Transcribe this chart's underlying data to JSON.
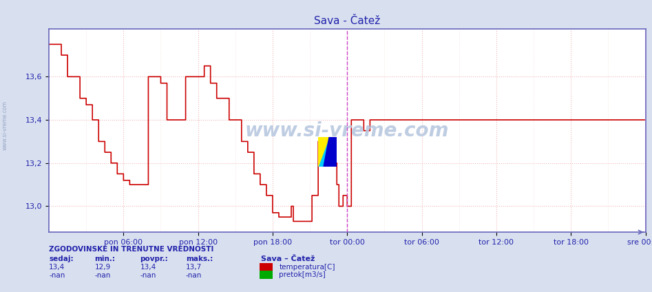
{
  "title": "Sava - Čatež",
  "title_color": "#2222aa",
  "bg_color": "#d8e0f0",
  "plot_bg_color": "#ffffff",
  "grid_color": "#f0b8b8",
  "grid_dash_color": "#c8c8d8",
  "line_color": "#cc0000",
  "line_width": 1.2,
  "ylim_min": 12.88,
  "ylim_max": 13.82,
  "yticks": [
    13.0,
    13.2,
    13.4,
    13.6
  ],
  "xtick_labels": [
    "pon 06:00",
    "pon 12:00",
    "pon 18:00",
    "tor 00:00",
    "tor 06:00",
    "tor 12:00",
    "tor 18:00",
    "sre 00:00"
  ],
  "vline_x": 288,
  "vline_x2": 576,
  "vline_color": "#cc44cc",
  "axis_color": "#6666bb",
  "tick_color": "#2222aa",
  "font_color": "#2222aa",
  "watermark_text": "www.si-vreme.com",
  "sidebar_text": "www.si-vreme.com",
  "info_title": "ZGODOVINSKE IN TRENUTNE VREDNOSTI",
  "info_station": "Sava – Čatež",
  "info_headers": [
    "sedaj:",
    "min.:",
    "povpr.:",
    "maks.:"
  ],
  "info_temp_values": [
    "13,4",
    "12,9",
    "13,4",
    "13,7"
  ],
  "info_flow_values": [
    "-nan",
    "-nan",
    "-nan",
    "-nan"
  ],
  "legend_temp_label": "temperatura[C]",
  "legend_flow_label": "pretok[m3/s]",
  "legend_temp_color": "#cc0000",
  "legend_flow_color": "#00aa00",
  "n_points": 576,
  "data_y": [
    13.75,
    13.75,
    13.75,
    13.75,
    13.75,
    13.75,
    13.75,
    13.75,
    13.75,
    13.75,
    13.75,
    13.75,
    13.7,
    13.7,
    13.7,
    13.7,
    13.7,
    13.7,
    13.6,
    13.6,
    13.6,
    13.6,
    13.6,
    13.6,
    13.6,
    13.6,
    13.6,
    13.6,
    13.6,
    13.6,
    13.5,
    13.5,
    13.5,
    13.5,
    13.5,
    13.5,
    13.47,
    13.47,
    13.47,
    13.47,
    13.47,
    13.47,
    13.4,
    13.4,
    13.4,
    13.4,
    13.4,
    13.4,
    13.3,
    13.3,
    13.3,
    13.3,
    13.3,
    13.3,
    13.25,
    13.25,
    13.25,
    13.25,
    13.25,
    13.25,
    13.2,
    13.2,
    13.2,
    13.2,
    13.2,
    13.2,
    13.15,
    13.15,
    13.15,
    13.15,
    13.15,
    13.15,
    13.12,
    13.12,
    13.12,
    13.12,
    13.12,
    13.12,
    13.1,
    13.1,
    13.1,
    13.1,
    13.1,
    13.1,
    13.1,
    13.1,
    13.1,
    13.1,
    13.1,
    13.1,
    13.1,
    13.1,
    13.1,
    13.1,
    13.1,
    13.1,
    13.6,
    13.6,
    13.6,
    13.6,
    13.6,
    13.6,
    13.6,
    13.6,
    13.6,
    13.6,
    13.6,
    13.6,
    13.57,
    13.57,
    13.57,
    13.57,
    13.57,
    13.57,
    13.4,
    13.4,
    13.4,
    13.4,
    13.4,
    13.4,
    13.4,
    13.4,
    13.4,
    13.4,
    13.4,
    13.4,
    13.4,
    13.4,
    13.4,
    13.4,
    13.4,
    13.4,
    13.6,
    13.6,
    13.6,
    13.6,
    13.6,
    13.6,
    13.6,
    13.6,
    13.6,
    13.6,
    13.6,
    13.6,
    13.6,
    13.6,
    13.6,
    13.6,
    13.6,
    13.6,
    13.65,
    13.65,
    13.65,
    13.65,
    13.65,
    13.65,
    13.57,
    13.57,
    13.57,
    13.57,
    13.57,
    13.57,
    13.5,
    13.5,
    13.5,
    13.5,
    13.5,
    13.5,
    13.5,
    13.5,
    13.5,
    13.5,
    13.5,
    13.5,
    13.4,
    13.4,
    13.4,
    13.4,
    13.4,
    13.4,
    13.4,
    13.4,
    13.4,
    13.4,
    13.4,
    13.4,
    13.3,
    13.3,
    13.3,
    13.3,
    13.3,
    13.3,
    13.25,
    13.25,
    13.25,
    13.25,
    13.25,
    13.25,
    13.15,
    13.15,
    13.15,
    13.15,
    13.15,
    13.15,
    13.1,
    13.1,
    13.1,
    13.1,
    13.1,
    13.1,
    13.05,
    13.05,
    13.05,
    13.05,
    13.05,
    13.05,
    12.97,
    12.97,
    12.97,
    12.97,
    12.97,
    12.97,
    12.95,
    12.95,
    12.95,
    12.95,
    12.95,
    12.95,
    12.95,
    12.95,
    12.95,
    12.95,
    12.95,
    12.95,
    13.0,
    13.0,
    12.93,
    12.93,
    12.93,
    12.93,
    12.93,
    12.93,
    12.93,
    12.93,
    12.93,
    12.93,
    12.93,
    12.93,
    12.93,
    12.93,
    12.93,
    12.93,
    12.93,
    12.93,
    13.05,
    13.05,
    13.05,
    13.05,
    13.05,
    13.05,
    13.3,
    13.3,
    13.3,
    13.3,
    13.3,
    13.3,
    13.3,
    13.3,
    13.3,
    13.3,
    13.3,
    13.3,
    13.2,
    13.2,
    13.2,
    13.2,
    13.2,
    13.2,
    13.1,
    13.1,
    13.0,
    13.0,
    13.0,
    13.0,
    13.05,
    13.05,
    13.05,
    13.05,
    13.0,
    13.0,
    13.0,
    13.0,
    13.4,
    13.4,
    13.4,
    13.4,
    13.4,
    13.4,
    13.4,
    13.4,
    13.4,
    13.4,
    13.4,
    13.4,
    13.35,
    13.35,
    13.35,
    13.35,
    13.35,
    13.35,
    13.4,
    13.4,
    13.4,
    13.4,
    13.4,
    13.4,
    13.4,
    13.4,
    13.4,
    13.4,
    13.4,
    13.4,
    13.4,
    13.4,
    13.4,
    13.4,
    13.4,
    13.4,
    13.4,
    13.4,
    13.4,
    13.4,
    13.4,
    13.4,
    13.4,
    13.4,
    13.4,
    13.4,
    13.4,
    13.4,
    13.4,
    13.4,
    13.4,
    13.4,
    13.4,
    13.4,
    13.4,
    13.4,
    13.4,
    13.4,
    13.4,
    13.4,
    13.4,
    13.4,
    13.4,
    13.4,
    13.4,
    13.4,
    13.4,
    13.4
  ]
}
